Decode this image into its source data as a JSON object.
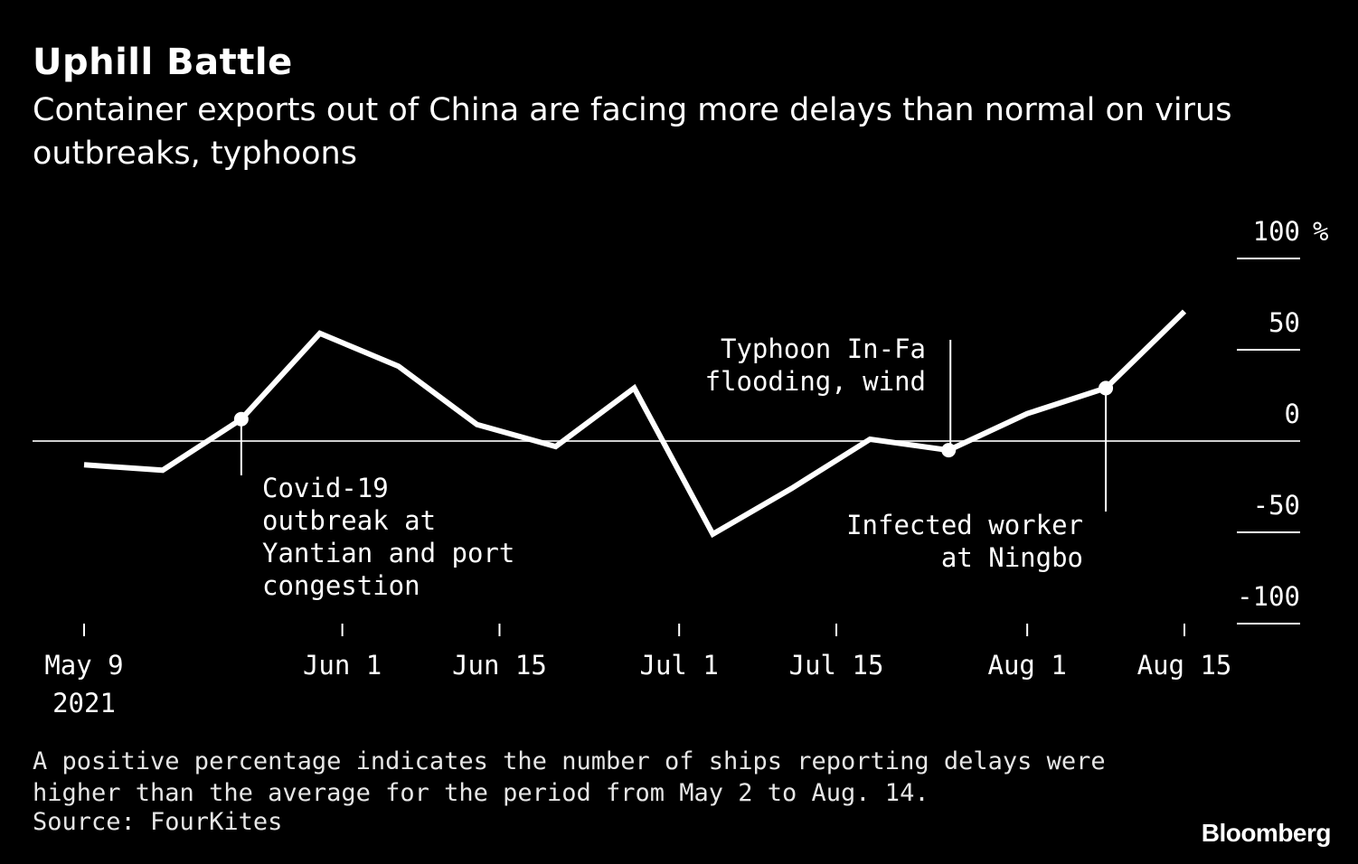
{
  "title": "Uphill Battle",
  "subtitle": "Container exports out of China are facing more delays than normal on virus outbreaks, typhoons",
  "footnote": "A positive percentage indicates the number of ships reporting delays were higher than the average for the period from May 2 to Aug. 14.",
  "source": "Source: FourKites",
  "brand": "Bloomberg",
  "chart_data": {
    "type": "line",
    "ylim": [
      -100,
      100
    ],
    "y_unit": "%",
    "y_ticks": [
      "100",
      "50",
      "0",
      "-50",
      "-100"
    ],
    "x_ticks": [
      "May 9",
      "Jun 1",
      "Jun 15",
      "Jul 1",
      "Jul 15",
      "Aug 1",
      "Aug 15"
    ],
    "x_tick_dates": [
      "2021-05-09",
      "2021-06-01",
      "2021-06-15",
      "2021-07-01",
      "2021-07-15",
      "2021-08-01",
      "2021-08-15"
    ],
    "year_label": "2021",
    "x": [
      "2021-05-09",
      "2021-05-16",
      "2021-05-23",
      "2021-05-30",
      "2021-06-06",
      "2021-06-13",
      "2021-06-20",
      "2021-06-27",
      "2021-07-04",
      "2021-07-11",
      "2021-07-18",
      "2021-07-25",
      "2021-08-01",
      "2021-08-08",
      "2021-08-15"
    ],
    "values": [
      -13,
      -16,
      12,
      59,
      41,
      9,
      -3,
      29,
      -51,
      -26,
      1,
      -5,
      15,
      29,
      71
    ],
    "annotations": [
      {
        "x": "2021-05-23",
        "value": 12,
        "text": [
          "Covid-19",
          "outbreak at",
          "Yantian and port",
          "congestion"
        ]
      },
      {
        "x": "2021-07-25",
        "value": -5,
        "text": [
          "Typhoon In-Fa",
          "flooding, wind"
        ]
      },
      {
        "x": "2021-08-08",
        "value": 29,
        "text": [
          "Infected worker",
          "at Ningbo"
        ]
      }
    ]
  }
}
